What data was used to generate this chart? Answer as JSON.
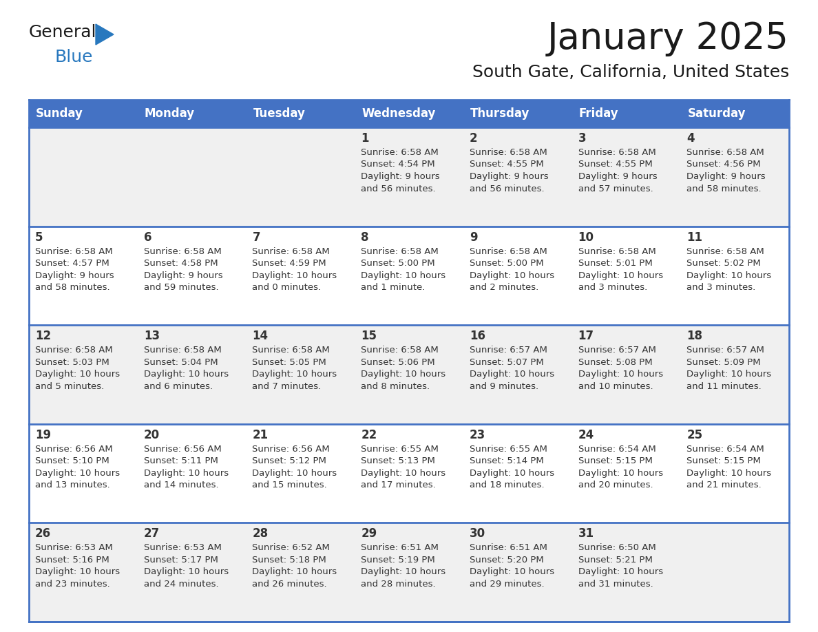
{
  "title": "January 2025",
  "subtitle": "South Gate, California, United States",
  "days_of_week": [
    "Sunday",
    "Monday",
    "Tuesday",
    "Wednesday",
    "Thursday",
    "Friday",
    "Saturday"
  ],
  "header_bg": "#4472C4",
  "header_text_color": "#FFFFFF",
  "row_bg_odd": "#F0F0F0",
  "row_bg_even": "#FFFFFF",
  "cell_border_color": "#4472C4",
  "title_color": "#1a1a1a",
  "subtitle_color": "#1a1a1a",
  "logo_general_color": "#1a1a1a",
  "logo_blue_color": "#2878BE",
  "logo_triangle_color": "#2878BE",
  "text_color": "#333333",
  "calendar_data": [
    [
      {
        "day": 0,
        "info": ""
      },
      {
        "day": 0,
        "info": ""
      },
      {
        "day": 0,
        "info": ""
      },
      {
        "day": 1,
        "info": "Sunrise: 6:58 AM\nSunset: 4:54 PM\nDaylight: 9 hours\nand 56 minutes."
      },
      {
        "day": 2,
        "info": "Sunrise: 6:58 AM\nSunset: 4:55 PM\nDaylight: 9 hours\nand 56 minutes."
      },
      {
        "day": 3,
        "info": "Sunrise: 6:58 AM\nSunset: 4:55 PM\nDaylight: 9 hours\nand 57 minutes."
      },
      {
        "day": 4,
        "info": "Sunrise: 6:58 AM\nSunset: 4:56 PM\nDaylight: 9 hours\nand 58 minutes."
      }
    ],
    [
      {
        "day": 5,
        "info": "Sunrise: 6:58 AM\nSunset: 4:57 PM\nDaylight: 9 hours\nand 58 minutes."
      },
      {
        "day": 6,
        "info": "Sunrise: 6:58 AM\nSunset: 4:58 PM\nDaylight: 9 hours\nand 59 minutes."
      },
      {
        "day": 7,
        "info": "Sunrise: 6:58 AM\nSunset: 4:59 PM\nDaylight: 10 hours\nand 0 minutes."
      },
      {
        "day": 8,
        "info": "Sunrise: 6:58 AM\nSunset: 5:00 PM\nDaylight: 10 hours\nand 1 minute."
      },
      {
        "day": 9,
        "info": "Sunrise: 6:58 AM\nSunset: 5:00 PM\nDaylight: 10 hours\nand 2 minutes."
      },
      {
        "day": 10,
        "info": "Sunrise: 6:58 AM\nSunset: 5:01 PM\nDaylight: 10 hours\nand 3 minutes."
      },
      {
        "day": 11,
        "info": "Sunrise: 6:58 AM\nSunset: 5:02 PM\nDaylight: 10 hours\nand 3 minutes."
      }
    ],
    [
      {
        "day": 12,
        "info": "Sunrise: 6:58 AM\nSunset: 5:03 PM\nDaylight: 10 hours\nand 5 minutes."
      },
      {
        "day": 13,
        "info": "Sunrise: 6:58 AM\nSunset: 5:04 PM\nDaylight: 10 hours\nand 6 minutes."
      },
      {
        "day": 14,
        "info": "Sunrise: 6:58 AM\nSunset: 5:05 PM\nDaylight: 10 hours\nand 7 minutes."
      },
      {
        "day": 15,
        "info": "Sunrise: 6:58 AM\nSunset: 5:06 PM\nDaylight: 10 hours\nand 8 minutes."
      },
      {
        "day": 16,
        "info": "Sunrise: 6:57 AM\nSunset: 5:07 PM\nDaylight: 10 hours\nand 9 minutes."
      },
      {
        "day": 17,
        "info": "Sunrise: 6:57 AM\nSunset: 5:08 PM\nDaylight: 10 hours\nand 10 minutes."
      },
      {
        "day": 18,
        "info": "Sunrise: 6:57 AM\nSunset: 5:09 PM\nDaylight: 10 hours\nand 11 minutes."
      }
    ],
    [
      {
        "day": 19,
        "info": "Sunrise: 6:56 AM\nSunset: 5:10 PM\nDaylight: 10 hours\nand 13 minutes."
      },
      {
        "day": 20,
        "info": "Sunrise: 6:56 AM\nSunset: 5:11 PM\nDaylight: 10 hours\nand 14 minutes."
      },
      {
        "day": 21,
        "info": "Sunrise: 6:56 AM\nSunset: 5:12 PM\nDaylight: 10 hours\nand 15 minutes."
      },
      {
        "day": 22,
        "info": "Sunrise: 6:55 AM\nSunset: 5:13 PM\nDaylight: 10 hours\nand 17 minutes."
      },
      {
        "day": 23,
        "info": "Sunrise: 6:55 AM\nSunset: 5:14 PM\nDaylight: 10 hours\nand 18 minutes."
      },
      {
        "day": 24,
        "info": "Sunrise: 6:54 AM\nSunset: 5:15 PM\nDaylight: 10 hours\nand 20 minutes."
      },
      {
        "day": 25,
        "info": "Sunrise: 6:54 AM\nSunset: 5:15 PM\nDaylight: 10 hours\nand 21 minutes."
      }
    ],
    [
      {
        "day": 26,
        "info": "Sunrise: 6:53 AM\nSunset: 5:16 PM\nDaylight: 10 hours\nand 23 minutes."
      },
      {
        "day": 27,
        "info": "Sunrise: 6:53 AM\nSunset: 5:17 PM\nDaylight: 10 hours\nand 24 minutes."
      },
      {
        "day": 28,
        "info": "Sunrise: 6:52 AM\nSunset: 5:18 PM\nDaylight: 10 hours\nand 26 minutes."
      },
      {
        "day": 29,
        "info": "Sunrise: 6:51 AM\nSunset: 5:19 PM\nDaylight: 10 hours\nand 28 minutes."
      },
      {
        "day": 30,
        "info": "Sunrise: 6:51 AM\nSunset: 5:20 PM\nDaylight: 10 hours\nand 29 minutes."
      },
      {
        "day": 31,
        "info": "Sunrise: 6:50 AM\nSunset: 5:21 PM\nDaylight: 10 hours\nand 31 minutes."
      },
      {
        "day": 0,
        "info": ""
      }
    ]
  ],
  "fig_width": 11.88,
  "fig_height": 9.18,
  "dpi": 100
}
